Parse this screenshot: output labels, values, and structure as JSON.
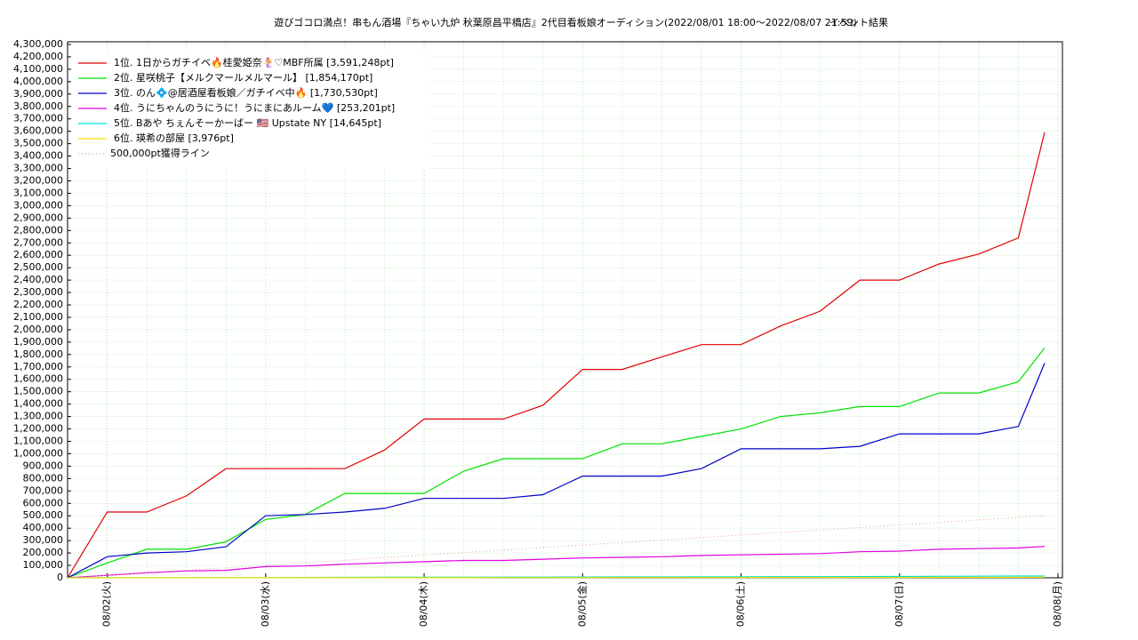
{
  "chart_data": {
    "type": "line",
    "title": "遊びゴコロ満点！串もん酒場『ちゃい九炉 秋葉原昌平橋店』2代目看板娘オーディション(2022/08/01 18:00〜2022/08/07 21:59)",
    "subtitle": "イベント結果",
    "x": [
      "2022-08-01T18:00",
      "2022-08-02T00:00",
      "2022-08-02T06:00",
      "2022-08-02T12:00",
      "2022-08-02T18:00",
      "2022-08-03T00:00",
      "2022-08-03T06:00",
      "2022-08-03T12:00",
      "2022-08-03T18:00",
      "2022-08-04T00:00",
      "2022-08-04T06:00",
      "2022-08-04T12:00",
      "2022-08-04T18:00",
      "2022-08-05T00:00",
      "2022-08-05T06:00",
      "2022-08-05T12:00",
      "2022-08-05T18:00",
      "2022-08-06T00:00",
      "2022-08-06T06:00",
      "2022-08-06T12:00",
      "2022-08-06T18:00",
      "2022-08-07T00:00",
      "2022-08-07T06:00",
      "2022-08-07T12:00",
      "2022-08-07T18:00",
      "2022-08-07T21:59"
    ],
    "series": [
      {
        "name": "1位. 1日からガチイベ🔥桂愛姫奈🧜‍♀️♡MBF所属 [3,591,248pt]",
        "color": "#e00000",
        "values": [
          0,
          530000,
          530000,
          660000,
          880000,
          880000,
          880000,
          880000,
          1030000,
          1280000,
          1280000,
          1280000,
          1390000,
          1680000,
          1680000,
          1780000,
          1880000,
          1880000,
          2030000,
          2150000,
          2400000,
          2400000,
          2530000,
          2610000,
          2740000,
          3591248
        ]
      },
      {
        "name": "2位. 星咲桃子【メルクマールメルマール】 [1,854,170pt]",
        "color": "#00e000",
        "values": [
          0,
          120000,
          230000,
          230000,
          290000,
          470000,
          510000,
          680000,
          680000,
          680000,
          860000,
          960000,
          960000,
          960000,
          1080000,
          1080000,
          1140000,
          1200000,
          1300000,
          1330000,
          1380000,
          1380000,
          1490000,
          1490000,
          1580000,
          1854170
        ]
      },
      {
        "name": "3位. のん💠@居酒屋看板娘／ガチイベ中🔥 [1,730,530pt]",
        "color": "#0000c8",
        "values": [
          0,
          170000,
          200000,
          210000,
          250000,
          500000,
          510000,
          530000,
          560000,
          640000,
          640000,
          640000,
          670000,
          820000,
          820000,
          820000,
          880000,
          1040000,
          1040000,
          1040000,
          1060000,
          1160000,
          1160000,
          1160000,
          1220000,
          1730530
        ]
      },
      {
        "name": "4位. うにちゃんのうにうに！うにまにあルーム💙 [253,201pt]",
        "color": "#e000e0",
        "values": [
          0,
          20000,
          40000,
          55000,
          60000,
          90000,
          95000,
          110000,
          120000,
          130000,
          140000,
          140000,
          150000,
          160000,
          165000,
          170000,
          180000,
          185000,
          190000,
          195000,
          210000,
          215000,
          230000,
          235000,
          240000,
          253201
        ]
      },
      {
        "name": "5位. Bあや ちぇんそーかーばー 🇺🇸 Upstate NY [14,645pt]",
        "color": "#00e0e0",
        "values": [
          0,
          500,
          1000,
          1500,
          2000,
          2500,
          3000,
          3500,
          4000,
          4500,
          5000,
          5500,
          6000,
          6500,
          7000,
          7500,
          8000,
          8500,
          9000,
          9500,
          10000,
          11000,
          12000,
          13000,
          14000,
          14645
        ]
      },
      {
        "name": "6位. 瑛希の部屋 [3,976pt]",
        "color": "#f0e000",
        "values": [
          0,
          100,
          200,
          300,
          400,
          500,
          600,
          700,
          800,
          900,
          1000,
          1200,
          1400,
          1600,
          1800,
          2000,
          2200,
          2400,
          2600,
          2800,
          3000,
          3200,
          3400,
          3600,
          3800,
          3976
        ]
      },
      {
        "name": "500,000pt獲得ライン",
        "color": "#e0a0a0",
        "dash": true,
        "x": [
          "2022-08-01T18:00",
          "2022-08-07T21:59"
        ],
        "values": [
          0,
          500000
        ]
      }
    ],
    "xlim": [
      "2022-08-01T18:00",
      "2022-08-08T00:00"
    ],
    "xticks": [
      {
        "value": "2022-08-02T00:00",
        "label": "08/02(火)"
      },
      {
        "value": "2022-08-03T00:00",
        "label": "08/03(水)"
      },
      {
        "value": "2022-08-04T00:00",
        "label": "08/04(木)"
      },
      {
        "value": "2022-08-05T00:00",
        "label": "08/05(金)"
      },
      {
        "value": "2022-08-06T00:00",
        "label": "08/06(土)"
      },
      {
        "value": "2022-08-07T00:00",
        "label": "08/07(日)"
      },
      {
        "value": "2022-08-08T00:00",
        "label": "08/08(月)"
      }
    ],
    "ylim": [
      0,
      4300000
    ],
    "yticks": [
      0,
      {
        "value": 100000,
        "label": "100,000"
      },
      {
        "value": 200000,
        "label": "200,000"
      },
      {
        "value": 300000,
        "label": "300,000"
      },
      {
        "value": 400000,
        "label": "400,000"
      },
      {
        "value": 500000,
        "label": "500,000"
      },
      {
        "value": 600000,
        "label": "600,000"
      },
      {
        "value": 700000,
        "label": "700,000"
      },
      {
        "value": 800000,
        "label": "800,000"
      },
      {
        "value": 900000,
        "label": "900,000"
      },
      {
        "value": 1000000,
        "label": "1,000,000"
      },
      {
        "value": 1100000,
        "label": "1,100,000"
      },
      {
        "value": 1200000,
        "label": "1,200,000"
      },
      {
        "value": 1300000,
        "label": "1,300,000"
      },
      {
        "value": 1400000,
        "label": "1,400,000"
      },
      {
        "value": 1500000,
        "label": "1,500,000"
      },
      {
        "value": 1600000,
        "label": "1,600,000"
      },
      {
        "value": 1700000,
        "label": "1,700,000"
      },
      {
        "value": 1800000,
        "label": "1,800,000"
      },
      {
        "value": 1900000,
        "label": "1,900,000"
      },
      {
        "value": 2000000,
        "label": "2,000,000"
      },
      {
        "value": 2100000,
        "label": "2,100,000"
      },
      {
        "value": 2200000,
        "label": "2,200,000"
      },
      {
        "value": 2300000,
        "label": "2,300,000"
      },
      {
        "value": 2400000,
        "label": "2,400,000"
      },
      {
        "value": 2500000,
        "label": "2,500,000"
      },
      {
        "value": 2600000,
        "label": "2,600,000"
      },
      {
        "value": 2700000,
        "label": "2,700,000"
      },
      {
        "value": 2800000,
        "label": "2,800,000"
      },
      {
        "value": 2900000,
        "label": "2,900,000"
      },
      {
        "value": 3000000,
        "label": "3,000,000"
      },
      {
        "value": 3100000,
        "label": "3,100,000"
      },
      {
        "value": 3200000,
        "label": "3,200,000"
      },
      {
        "value": 3300000,
        "label": "3,300,000"
      },
      {
        "value": 3400000,
        "label": "3,400,000"
      },
      {
        "value": 3500000,
        "label": "3,500,000"
      },
      {
        "value": 3600000,
        "label": "3,600,000"
      },
      {
        "value": 3700000,
        "label": "3,700,000"
      },
      {
        "value": 3800000,
        "label": "3,800,000"
      },
      {
        "value": 3900000,
        "label": "3,900,000"
      },
      {
        "value": 4000000,
        "label": "4,000,000"
      },
      {
        "value": 4100000,
        "label": "4,100,000"
      },
      {
        "value": 4200000,
        "label": "4,200,000"
      },
      {
        "value": 4300000,
        "label": "4,300,000"
      }
    ],
    "grid": true,
    "legend": "upper-left"
  }
}
